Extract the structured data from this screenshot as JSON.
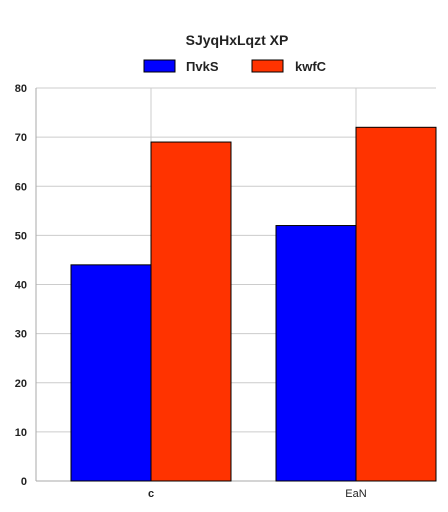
{
  "chart_data": {
    "type": "bar",
    "title": "SJyqHxLqzt XP",
    "xlabel": "",
    "ylabel": "",
    "categories": [
      "c",
      "EaN"
    ],
    "series": [
      {
        "name": "ΠvkS",
        "color": "#0000ff",
        "values": [
          44,
          52
        ]
      },
      {
        "name": "kwfC",
        "color": "#ff3300",
        "values": [
          69,
          72
        ]
      }
    ],
    "ylim": [
      0,
      80
    ],
    "yticks": [
      0,
      10,
      20,
      30,
      40,
      50,
      60,
      70,
      80
    ],
    "grid": true,
    "legend_position": "top-center"
  }
}
